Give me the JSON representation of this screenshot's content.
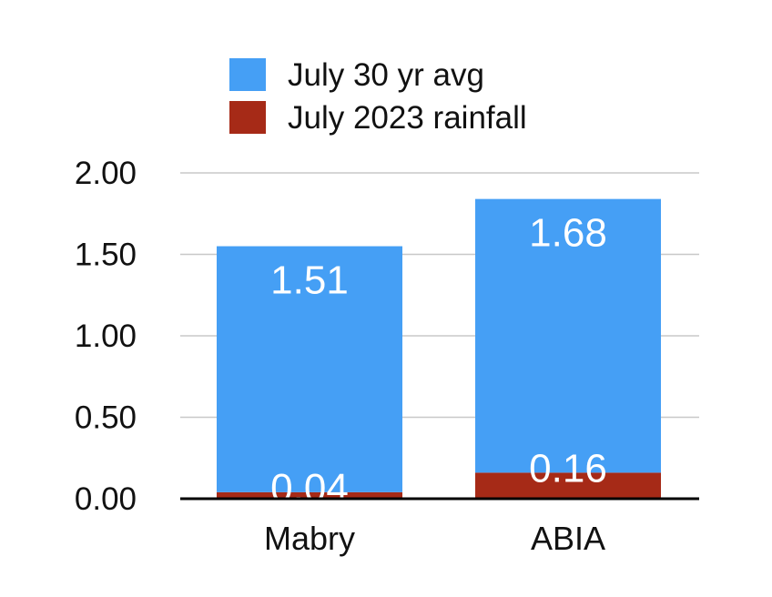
{
  "chart_data": {
    "type": "bar",
    "stacked": true,
    "categories": [
      "Mabry",
      "ABIA"
    ],
    "series": [
      {
        "name": "July 2023 rainfall",
        "values": [
          0.04,
          0.16
        ],
        "color": "#a62a17",
        "label_color": "#ffffff"
      },
      {
        "name": "July 30 yr avg",
        "values": [
          1.51,
          1.68
        ],
        "color": "#459ff5",
        "label_color": "#ffffff"
      }
    ],
    "data_labels": [
      [
        "0.04",
        "0.16"
      ],
      [
        "1.51",
        "1.68"
      ]
    ],
    "legend_order": [
      1,
      0
    ],
    "legend_position": "top",
    "ylim": [
      0,
      2
    ],
    "yticks": [
      0,
      0.5,
      1,
      1.5,
      2
    ],
    "ytick_labels": [
      "0.00",
      "0.50",
      "1.00",
      "1.50",
      "2.00"
    ],
    "grid": true,
    "title": "",
    "xlabel": "",
    "ylabel": ""
  }
}
